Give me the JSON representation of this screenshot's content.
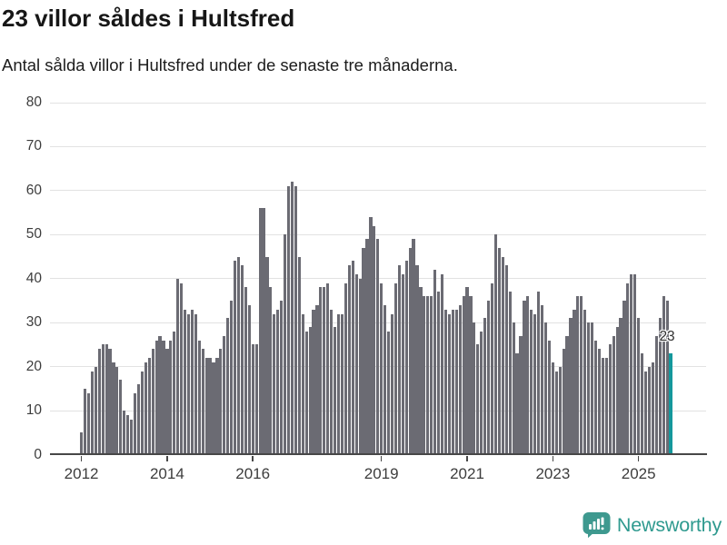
{
  "header": {
    "title": "23 villor såldes i Hultsfred",
    "subtitle": "Antal sålda villor i Hultsfred under de senaste tre månaderna."
  },
  "chart_data": {
    "type": "bar",
    "title": "23 villor såldes i Hultsfred",
    "subtitle": "Antal sålda villor i Hultsfred under de senaste tre månaderna.",
    "unit": "sålda villor (rullande tre månader)",
    "x_start": "2012-01",
    "x_end": "2025-10",
    "ylim": [
      0,
      80
    ],
    "grid": true,
    "yticks": [
      0,
      10,
      20,
      30,
      40,
      50,
      60,
      70,
      80
    ],
    "xticks": [
      {
        "label": "2012",
        "month_index": 0
      },
      {
        "label": "2014",
        "month_index": 24
      },
      {
        "label": "2016",
        "month_index": 48
      },
      {
        "label": "2019",
        "month_index": 84
      },
      {
        "label": "2021",
        "month_index": 108
      },
      {
        "label": "2023",
        "month_index": 132
      },
      {
        "label": "2025",
        "month_index": 156
      }
    ],
    "values": [
      5,
      15,
      14,
      19,
      20,
      24,
      25,
      25,
      24,
      21,
      20,
      17,
      10,
      9,
      8,
      14,
      16,
      19,
      21,
      22,
      24,
      26,
      27,
      26,
      24,
      26,
      28,
      40,
      39,
      33,
      32,
      33,
      32,
      26,
      24,
      22,
      22,
      21,
      22,
      24,
      27,
      31,
      35,
      44,
      45,
      43,
      38,
      34,
      25,
      25,
      56,
      56,
      45,
      38,
      32,
      33,
      35,
      50,
      61,
      62,
      61,
      45,
      32,
      28,
      29,
      33,
      34,
      38,
      38,
      39,
      33,
      29,
      32,
      32,
      39,
      43,
      44,
      41,
      40,
      47,
      49,
      54,
      52,
      49,
      39,
      34,
      28,
      32,
      39,
      43,
      41,
      44,
      47,
      49,
      43,
      38,
      36,
      36,
      36,
      42,
      37,
      41,
      33,
      32,
      33,
      33,
      34,
      36,
      38,
      36,
      30,
      25,
      28,
      31,
      35,
      39,
      50,
      47,
      45,
      43,
      37,
      30,
      23,
      27,
      35,
      36,
      33,
      32,
      37,
      34,
      30,
      26,
      21,
      19,
      20,
      24,
      27,
      31,
      33,
      36,
      36,
      33,
      30,
      30,
      26,
      24,
      22,
      22,
      25,
      27,
      29,
      31,
      35,
      39,
      41,
      41,
      31,
      23,
      19,
      20,
      21,
      27,
      31,
      36,
      35,
      23
    ],
    "highlight": {
      "index_from_end": 1,
      "value": 23,
      "label": "23"
    },
    "colors": {
      "bar": "#6b6b73",
      "highlight": "#14989c",
      "grid": "#e2e2e2",
      "axis": "#474747",
      "tick_text": "#3d3d3d",
      "title_text": "#171717"
    },
    "legend": "none"
  },
  "footer": {
    "brand": "Newsworthy",
    "logo_icon": "newsworthy-speech-bubble-bar-chart-icon",
    "brand_color": "#2f9a8f"
  }
}
